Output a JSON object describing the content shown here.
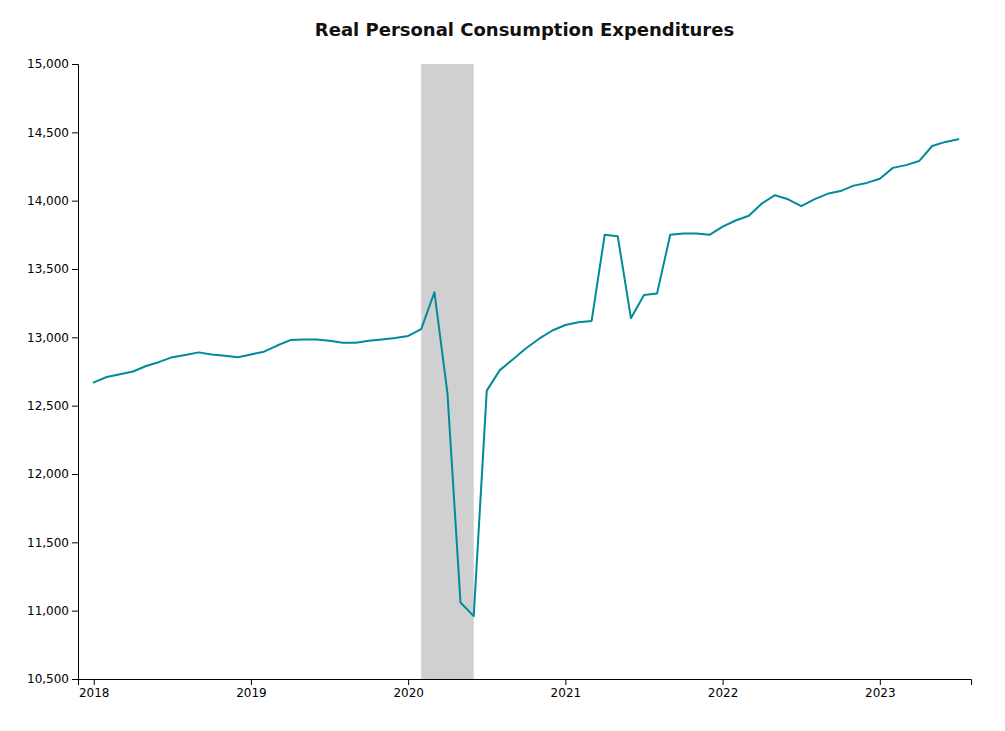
{
  "chart_data": {
    "type": "line",
    "title": "Real Personal Consumption Expenditures",
    "color": "#008B9A",
    "grid": false,
    "spans": [
      {
        "start": 2020.083,
        "end": 2020.417,
        "color": "#D0D0D0"
      }
    ],
    "xlim": [
      2017.9,
      2023.58
    ],
    "xticks": [
      2018,
      2019,
      2020,
      2021,
      2022,
      2023
    ],
    "ylim": [
      10500,
      15000
    ],
    "yticks": [
      {
        "value": 10500,
        "label": "10,500"
      },
      {
        "value": 11000,
        "label": "11,000"
      },
      {
        "value": 11500,
        "label": "11,500"
      },
      {
        "value": 12000,
        "label": "12,000"
      },
      {
        "value": 12500,
        "label": "12,500"
      },
      {
        "value": 13000,
        "label": "13,000"
      },
      {
        "value": 13500,
        "label": "13,500"
      },
      {
        "value": 14000,
        "label": "14,000"
      },
      {
        "value": 14500,
        "label": "14,500"
      },
      {
        "value": 15000,
        "label": "15,000"
      }
    ],
    "x": [
      2018.0,
      2018.083,
      2018.167,
      2018.25,
      2018.333,
      2018.417,
      2018.5,
      2018.583,
      2018.667,
      2018.75,
      2018.833,
      2018.917,
      2019.0,
      2019.083,
      2019.167,
      2019.25,
      2019.333,
      2019.417,
      2019.5,
      2019.583,
      2019.667,
      2019.75,
      2019.833,
      2019.917,
      2020.0,
      2020.083,
      2020.167,
      2020.25,
      2020.333,
      2020.417,
      2020.5,
      2020.583,
      2020.667,
      2020.75,
      2020.833,
      2020.917,
      2021.0,
      2021.083,
      2021.167,
      2021.25,
      2021.333,
      2021.417,
      2021.5,
      2021.583,
      2021.667,
      2021.75,
      2021.833,
      2021.917,
      2022.0,
      2022.083,
      2022.167,
      2022.25,
      2022.333,
      2022.417,
      2022.5,
      2022.583,
      2022.667,
      2022.75,
      2022.833,
      2022.917,
      2023.0,
      2023.083,
      2023.167,
      2023.25,
      2023.333,
      2023.417,
      2023.5
    ],
    "values": [
      12670,
      12710,
      12730,
      12750,
      12790,
      12820,
      12855,
      12870,
      12890,
      12875,
      12865,
      12855,
      12875,
      12895,
      12940,
      12980,
      12985,
      12985,
      12975,
      12960,
      12960,
      12975,
      12985,
      12995,
      13010,
      13060,
      13330,
      12590,
      11060,
      10960,
      12610,
      12760,
      12840,
      12920,
      12990,
      13050,
      13090,
      13110,
      13120,
      13750,
      13740,
      13140,
      13310,
      13320,
      13750,
      13760,
      13760,
      13750,
      13810,
      13855,
      13890,
      13980,
      14040,
      14010,
      13960,
      14010,
      14050,
      14070,
      14110,
      14130,
      14160,
      14240,
      14260,
      14290,
      14400,
      14430,
      14450
    ]
  }
}
